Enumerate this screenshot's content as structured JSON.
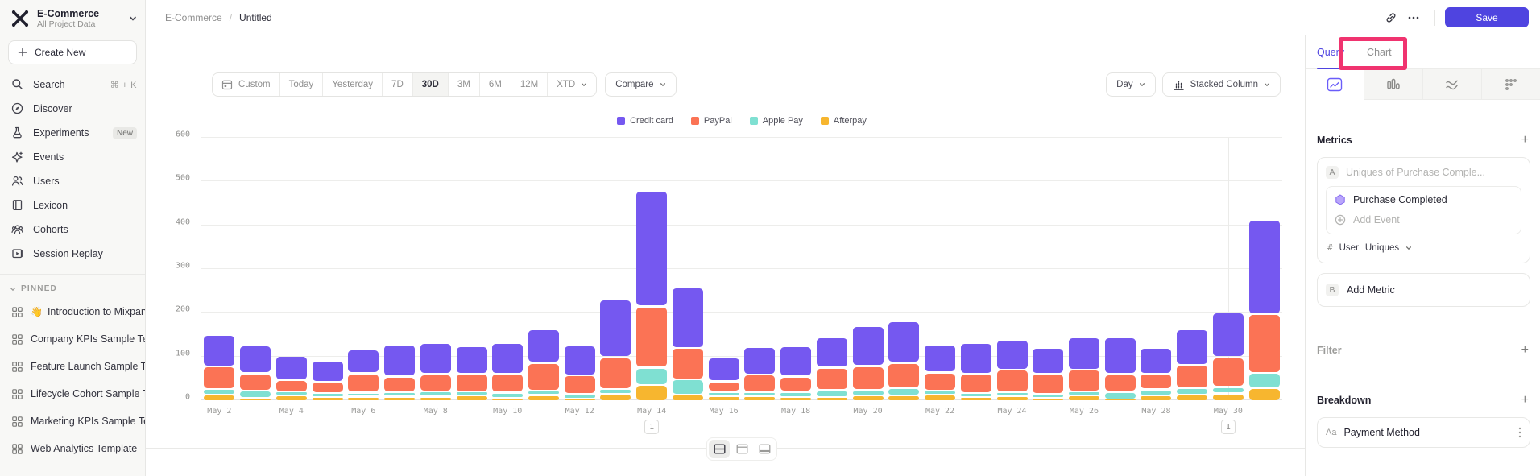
{
  "app": {
    "accent": "#4f44e0",
    "annotation_highlight_color": "#f0336f"
  },
  "sidebar": {
    "project_name": "E-Commerce",
    "project_subtitle": "All Project Data",
    "create_new_label": "Create New",
    "nav": [
      {
        "id": "search",
        "label": "Search",
        "shortcut": "⌘ + K"
      },
      {
        "id": "discover",
        "label": "Discover"
      },
      {
        "id": "experiments",
        "label": "Experiments",
        "badge": "New"
      },
      {
        "id": "events",
        "label": "Events"
      },
      {
        "id": "users",
        "label": "Users"
      },
      {
        "id": "lexicon",
        "label": "Lexicon"
      },
      {
        "id": "cohorts",
        "label": "Cohorts"
      },
      {
        "id": "session-replay",
        "label": "Session Replay"
      }
    ],
    "pinned_header": "PINNED",
    "pinned": [
      {
        "emoji": "👋",
        "label": "Introduction to Mixpanel Bo"
      },
      {
        "label": "Company KPIs Sample Templat"
      },
      {
        "label": "Feature Launch Sample Templa"
      },
      {
        "label": "Lifecycle Cohort Sample Temp"
      },
      {
        "label": "Marketing KPIs Sample Templat"
      },
      {
        "label": "Web Analytics Template"
      }
    ]
  },
  "header": {
    "breadcrumb_project": "E-Commerce",
    "breadcrumb_separator": "/",
    "breadcrumb_page": "Untitled",
    "save_label": "Save"
  },
  "toolbar": {
    "date_ranges": [
      "Custom",
      "Today",
      "Yesterday",
      "7D",
      "30D",
      "3M",
      "6M",
      "12M",
      "XTD"
    ],
    "active_range": "30D",
    "compare_label": "Compare",
    "granularity_label": "Day",
    "chart_type_label": "Stacked Column"
  },
  "query_panel": {
    "tabs": [
      {
        "label": "Query",
        "active": true
      },
      {
        "label": "Chart",
        "active": false
      }
    ],
    "metrics_title": "Metrics",
    "metric_a_letter": "A",
    "metric_a_placeholder": "Uniques of Purchase Comple...",
    "event_name": "Purchase Completed",
    "add_event_label": "Add Event",
    "counting_prefix": "#",
    "counting_entity": "User",
    "counting_method": "Uniques",
    "metric_b_letter": "B",
    "add_metric_label": "Add Metric",
    "filter_title": "Filter",
    "breakdown_title": "Breakdown",
    "breakdown_type_label": "Aa",
    "breakdown_property": "Payment Method"
  },
  "footer": {
    "layout_toggles": [
      "split-horizontal",
      "panel-top",
      "panel-bottom"
    ],
    "active_toggle": "split-horizontal"
  },
  "chart_data": {
    "type": "bar",
    "stacked": true,
    "title": "",
    "xlabel": "",
    "ylabel": "",
    "ylim": [
      0,
      600
    ],
    "yticks": [
      0,
      100,
      200,
      300,
      400,
      500,
      600
    ],
    "grid": true,
    "legend_position": "top",
    "x": [
      "May 2",
      "May 3",
      "May 4",
      "May 5",
      "May 6",
      "May 7",
      "May 8",
      "May 9",
      "May 10",
      "May 11",
      "May 12",
      "May 13",
      "May 14",
      "May 15",
      "May 16",
      "May 17",
      "May 18",
      "May 19",
      "May 20",
      "May 21",
      "May 22",
      "May 23",
      "May 24",
      "May 25",
      "May 26",
      "May 27",
      "May 28",
      "May 29",
      "May 30",
      "May 31"
    ],
    "x_tick_labels": [
      "May 2",
      "May 4",
      "May 6",
      "May 8",
      "May 10",
      "May 12",
      "May 14",
      "May 16",
      "May 18",
      "May 20",
      "May 22",
      "May 24",
      "May 26",
      "May 28",
      "May 30"
    ],
    "series": [
      {
        "name": "Credit card",
        "color": "#7558f0",
        "values": [
          72,
          64,
          56,
          48,
          55,
          72,
          72,
          63,
          71,
          76,
          69,
          132,
          264,
          138,
          54,
          64,
          70,
          70,
          92,
          96,
          63,
          70,
          68,
          60,
          75,
          85,
          59,
          81,
          102,
          217
        ]
      },
      {
        "name": "PayPal",
        "color": "#fb7355",
        "values": [
          52,
          40,
          27,
          26,
          44,
          36,
          39,
          42,
          43,
          64,
          42,
          73,
          140,
          72,
          24,
          41,
          35,
          52,
          56,
          58,
          42,
          45,
          51,
          46,
          49,
          40,
          36,
          53,
          68,
          134
        ]
      },
      {
        "name": "Apple Pay",
        "color": "#7fe0d2",
        "values": [
          13,
          16,
          8,
          9,
          9,
          10,
          12,
          8,
          12,
          10,
          12,
          11,
          40,
          35,
          10,
          8,
          12,
          15,
          12,
          17,
          9,
          8,
          9,
          9,
          10,
          18,
          14,
          15,
          15,
          35
        ]
      },
      {
        "name": "Afterpay",
        "color": "#f7b62f",
        "values": [
          15,
          8,
          13,
          10,
          11,
          11,
          11,
          13,
          8,
          14,
          5,
          17,
          37,
          15,
          12,
          12,
          10,
          10,
          13,
          13,
          15,
          10,
          12,
          8,
          13,
          4,
          13,
          15,
          18,
          30
        ]
      }
    ],
    "stack_order_bottom_to_top": [
      "Afterpay",
      "Apple Pay",
      "PayPal",
      "Credit card"
    ],
    "annotations": [
      {
        "x": "May 14",
        "label": "1"
      },
      {
        "x": "May 30",
        "label": "1"
      }
    ]
  }
}
